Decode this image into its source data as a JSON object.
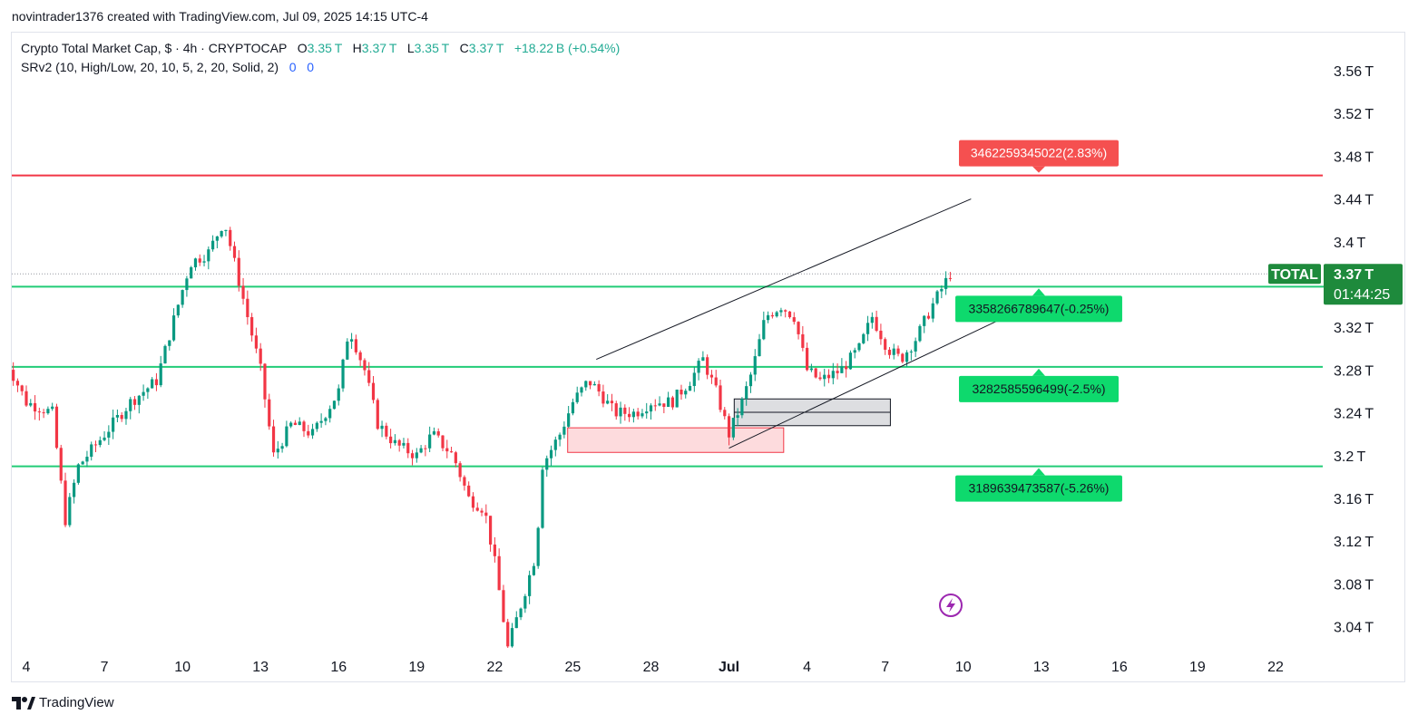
{
  "attribution": "novintrader1376 created with TradingView.com, Jul 09, 2025 14:15 UTC-4",
  "legend": {
    "symbol": "Crypto Total Market Cap, $ · 4h · CRYPTOCAP",
    "o_label": "O",
    "o_val": "3.35 T",
    "h_label": "H",
    "h_val": "3.37 T",
    "l_label": "L",
    "l_val": "3.35 T",
    "c_label": "C",
    "c_val": "3.37 T",
    "change": "+18.22 B (+0.54%)",
    "indicator": "SRv2 (10, High/Low, 20, 10, 5, 2, 20, Solid, 2)",
    "indicator_v1": "0",
    "indicator_v2": "0"
  },
  "footer": {
    "logo_text": "TradingView"
  },
  "colors": {
    "up": "#089981",
    "down": "#f23645",
    "support": "#22cc77",
    "resistance": "#f23645",
    "resistance_label": "#f55050",
    "support_label": "#0ed96d"
  },
  "chart_data": {
    "type": "candlestick",
    "title": "Crypto Total Market Cap",
    "interval": "4h",
    "y_unit": "T",
    "ylim": [
      3.005,
      3.585
    ],
    "y_ticks": [
      3.56,
      3.52,
      3.48,
      3.44,
      3.4,
      3.36,
      3.32,
      3.28,
      3.24,
      3.2,
      3.16,
      3.12,
      3.08,
      3.04
    ],
    "y_tick_labels": [
      "3.56 T",
      "3.52 T",
      "3.48 T",
      "3.44 T",
      "3.4 T",
      "",
      "3.32 T",
      "3.28 T",
      "3.24 T",
      "3.2 T",
      "3.16 T",
      "3.12 T",
      "3.08 T",
      "3.04 T"
    ],
    "x_ticks": [
      {
        "label": "4",
        "day": 4
      },
      {
        "label": "7",
        "day": 7
      },
      {
        "label": "10",
        "day": 10
      },
      {
        "label": "13",
        "day": 13
      },
      {
        "label": "16",
        "day": 16
      },
      {
        "label": "19",
        "day": 19
      },
      {
        "label": "22",
        "day": 22
      },
      {
        "label": "25",
        "day": 25
      },
      {
        "label": "28",
        "day": 28
      },
      {
        "label": "Jul",
        "day": 31
      },
      {
        "label": "4",
        "day": 34
      },
      {
        "label": "7",
        "day": 37
      },
      {
        "label": "10",
        "day": 40
      },
      {
        "label": "13",
        "day": 43
      },
      {
        "label": "16",
        "day": 46
      },
      {
        "label": "19",
        "day": 49
      },
      {
        "label": "22",
        "day": 52
      }
    ],
    "close_series": [
      [
        3.0,
        3.3
      ],
      [
        4.0,
        3.25
      ],
      [
        5.0,
        3.24
      ],
      [
        5.5,
        3.14
      ],
      [
        6.0,
        3.19
      ],
      [
        7.0,
        3.22
      ],
      [
        8.0,
        3.25
      ],
      [
        9.0,
        3.27
      ],
      [
        9.7,
        3.33
      ],
      [
        10.3,
        3.38
      ],
      [
        11.0,
        3.39
      ],
      [
        11.6,
        3.42
      ],
      [
        12.2,
        3.36
      ],
      [
        13.0,
        3.28
      ],
      [
        13.5,
        3.2
      ],
      [
        14.2,
        3.23
      ],
      [
        15.0,
        3.22
      ],
      [
        16.0,
        3.26
      ],
      [
        16.4,
        3.32
      ],
      [
        17.0,
        3.28
      ],
      [
        17.5,
        3.23
      ],
      [
        18.2,
        3.21
      ],
      [
        19.0,
        3.2
      ],
      [
        19.6,
        3.22
      ],
      [
        20.4,
        3.2
      ],
      [
        21.0,
        3.16
      ],
      [
        21.6,
        3.15
      ],
      [
        22.0,
        3.1
      ],
      [
        22.5,
        3.02
      ],
      [
        23.0,
        3.06
      ],
      [
        23.6,
        3.11
      ],
      [
        23.8,
        3.19
      ],
      [
        24.5,
        3.22
      ],
      [
        25.0,
        3.25
      ],
      [
        25.6,
        3.27
      ],
      [
        26.0,
        3.26
      ],
      [
        26.6,
        3.24
      ],
      [
        27.4,
        3.24
      ],
      [
        28.0,
        3.25
      ],
      [
        28.8,
        3.25
      ],
      [
        29.5,
        3.27
      ],
      [
        30.0,
        3.29
      ],
      [
        30.5,
        3.26
      ],
      [
        31.0,
        3.22
      ],
      [
        31.5,
        3.25
      ],
      [
        31.9,
        3.28
      ],
      [
        32.4,
        3.33
      ],
      [
        33.0,
        3.34
      ],
      [
        33.5,
        3.33
      ],
      [
        34.0,
        3.28
      ],
      [
        34.5,
        3.27
      ],
      [
        35.3,
        3.28
      ],
      [
        36.0,
        3.3
      ],
      [
        36.5,
        3.33
      ],
      [
        37.1,
        3.3
      ],
      [
        37.6,
        3.29
      ],
      [
        38.2,
        3.31
      ],
      [
        38.8,
        3.34
      ],
      [
        39.5,
        3.37
      ]
    ],
    "last_value_label": "3.37 T",
    "last_series_name": "TOTAL",
    "countdown": "01:44:25",
    "horizontal_levels": [
      {
        "type": "resistance",
        "value": 3.462,
        "label": "3462259345022(2.83%)"
      },
      {
        "type": "support",
        "value": 3.358,
        "label": "3358266789647(-0.25%)"
      },
      {
        "type": "support",
        "value": 3.283,
        "label": "3282585596499(-2.5%)"
      },
      {
        "type": "support",
        "value": 3.19,
        "label": "3189639473587(-5.26%)"
      }
    ],
    "annotations": [
      {
        "kind": "trendline",
        "from": [
          25.9,
          3.29
        ],
        "to": [
          40.3,
          3.44
        ]
      },
      {
        "kind": "trendline",
        "from": [
          31.0,
          3.207
        ],
        "to": [
          43.3,
          3.349
        ]
      },
      {
        "kind": "zone",
        "color": "pink",
        "x": [
          24.8,
          33.1
        ],
        "y": [
          3.203,
          3.226
        ]
      },
      {
        "kind": "zone",
        "color": "gray",
        "x": [
          31.2,
          37.2
        ],
        "y": [
          3.228,
          3.253
        ]
      }
    ],
    "grid": false
  }
}
